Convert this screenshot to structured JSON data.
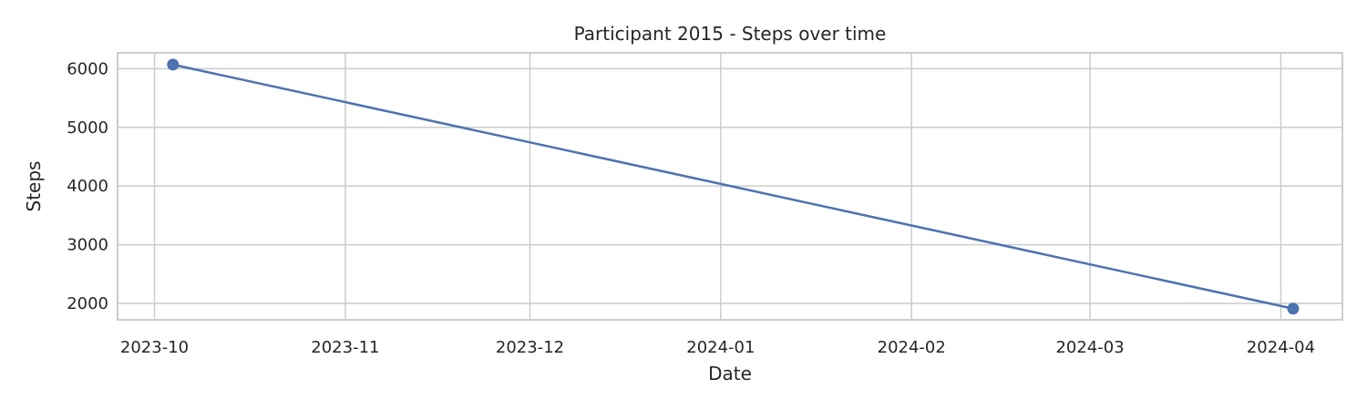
{
  "chart_data": {
    "type": "line",
    "title": "Participant 2015 - Steps over time",
    "xlabel": "Date",
    "ylabel": "Steps",
    "x_axis_kind": "date",
    "x": [
      "2023-10-04",
      "2024-04-03"
    ],
    "series": [
      {
        "values": [
          6070,
          1910
        ],
        "color": "#4c72b0"
      }
    ],
    "xlim": [
      "2023-09-25",
      "2024-04-11"
    ],
    "ylim": [
      1720,
      6270
    ],
    "xticks": [
      "2023-10-01",
      "2023-11-01",
      "2023-12-01",
      "2024-01-01",
      "2024-02-01",
      "2024-03-01",
      "2024-04-01"
    ],
    "xtick_labels": [
      "2023-10",
      "2023-11",
      "2023-12",
      "2024-01",
      "2024-02",
      "2024-03",
      "2024-04"
    ],
    "yticks": [
      2000,
      3000,
      4000,
      5000,
      6000
    ],
    "ytick_labels": [
      "2000",
      "3000",
      "4000",
      "5000",
      "6000"
    ],
    "grid": true,
    "markers": true,
    "colors": {
      "grid": "#cccccc",
      "frame": "#cccccc",
      "text": "#262626"
    }
  }
}
